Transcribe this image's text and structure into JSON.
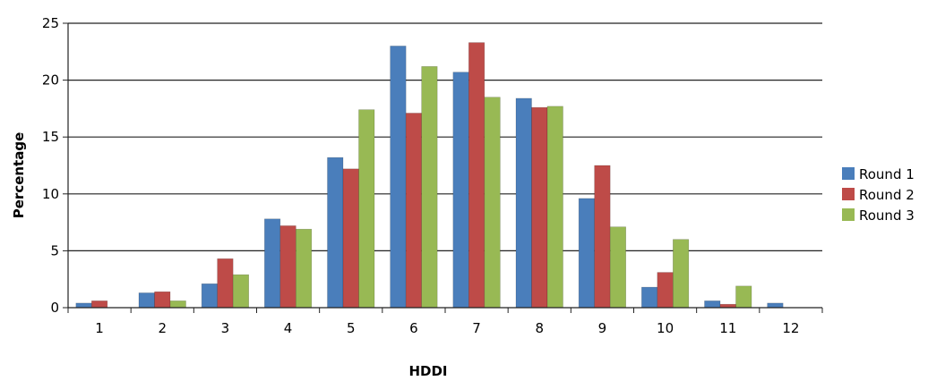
{
  "chart_data": {
    "type": "bar",
    "title": "",
    "xlabel": "HDDI",
    "ylabel": "Percentage",
    "ylim": [
      0,
      25
    ],
    "yticks": [
      0,
      5,
      10,
      15,
      20,
      25
    ],
    "grid": "horizontal",
    "legend_position": "right",
    "categories": [
      "1",
      "2",
      "3",
      "4",
      "5",
      "6",
      "7",
      "8",
      "9",
      "10",
      "11",
      "12"
    ],
    "series": [
      {
        "name": "Round 1",
        "color": "#4a7ebb",
        "values": [
          0.4,
          1.3,
          2.1,
          7.8,
          13.2,
          23.0,
          20.7,
          18.4,
          9.6,
          1.8,
          0.6,
          0.4
        ]
      },
      {
        "name": "Round 2",
        "color": "#be4b48",
        "values": [
          0.6,
          1.4,
          4.3,
          7.2,
          12.2,
          17.1,
          23.3,
          17.6,
          12.5,
          3.1,
          0.3,
          0.0
        ]
      },
      {
        "name": "Round 3",
        "color": "#98b954",
        "values": [
          0.0,
          0.6,
          2.9,
          6.9,
          17.4,
          21.2,
          18.5,
          17.7,
          7.1,
          6.0,
          1.9,
          0.0
        ]
      }
    ]
  }
}
